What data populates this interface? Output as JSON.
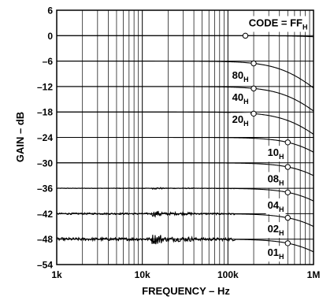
{
  "chart_data": {
    "type": "line",
    "title": "",
    "xlabel": "FREQUENCY – Hz",
    "ylabel": "GAIN – dB",
    "xscale": "log",
    "xlim": [
      1000,
      1000000
    ],
    "ylim": [
      -54,
      6
    ],
    "grid": true,
    "x_tick_labels": [
      {
        "value": 1000,
        "label": "1k"
      },
      {
        "value": 10000,
        "label": "10k"
      },
      {
        "value": 100000,
        "label": "100k"
      },
      {
        "value": 1000000,
        "label": "1M"
      }
    ],
    "y_ticks": [
      6,
      0,
      -6,
      -12,
      -18,
      -24,
      -30,
      -36,
      -42,
      -48,
      -54
    ],
    "y_tick_labels": [
      "6",
      "0",
      "–6",
      "–12",
      "–18",
      "–24",
      "–30",
      "–36",
      "–42",
      "–48",
      "–54"
    ],
    "series": [
      {
        "name": "FF",
        "suffix": "H",
        "dc_gain_db": 0,
        "corner_hz": 4000000,
        "marker_hz": 160000,
        "label_hz": 175000,
        "label_db": 2.2,
        "label_prefix": "CODE = "
      },
      {
        "name": "80",
        "suffix": "H",
        "dc_gain_db": -6,
        "corner_hz": 550000,
        "marker_hz": 200000,
        "label_hz": 112000,
        "label_db": -10.2
      },
      {
        "name": "40",
        "suffix": "H",
        "dc_gain_db": -12,
        "corner_hz": 600000,
        "marker_hz": 200000,
        "label_hz": 112000,
        "label_db": -15.4
      },
      {
        "name": "20",
        "suffix": "H",
        "dc_gain_db": -18,
        "corner_hz": 650000,
        "marker_hz": 200000,
        "label_hz": 112000,
        "label_db": -20.6
      },
      {
        "name": "10",
        "suffix": "H",
        "dc_gain_db": -24,
        "corner_hz": 900000,
        "marker_hz": 500000,
        "label_hz": 290000,
        "label_db": -28.4
      },
      {
        "name": "08",
        "suffix": "H",
        "dc_gain_db": -30,
        "corner_hz": 1000000,
        "marker_hz": 500000,
        "label_hz": 290000,
        "label_db": -34.6
      },
      {
        "name": "04",
        "suffix": "H",
        "dc_gain_db": -36,
        "corner_hz": 1000000,
        "marker_hz": 500000,
        "label_hz": 290000,
        "label_db": -40.8
      },
      {
        "name": "02",
        "suffix": "H",
        "dc_gain_db": -42,
        "corner_hz": 1000000,
        "marker_hz": 500000,
        "label_hz": 290000,
        "label_db": -46.4
      },
      {
        "name": "01",
        "suffix": "H",
        "dc_gain_db": -48,
        "corner_hz": 1000000,
        "marker_hz": 500000,
        "label_hz": 290000,
        "label_db": -52.0
      }
    ]
  }
}
